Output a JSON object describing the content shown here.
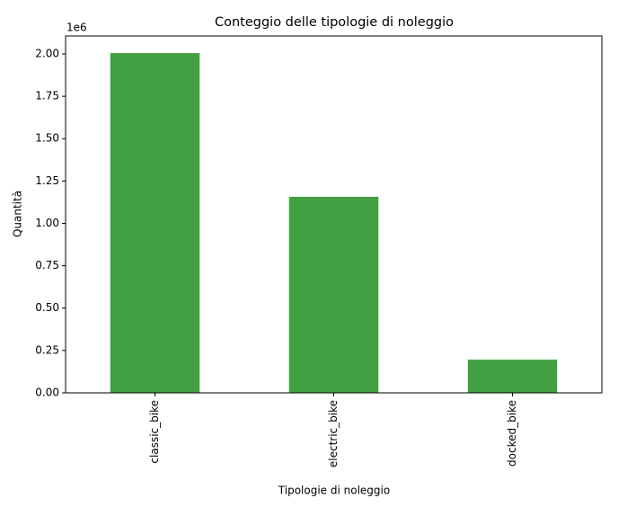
{
  "chart_data": {
    "type": "bar",
    "title": "Conteggio delle tipologie di noleggio",
    "x_label": "Tipologie di noleggio",
    "y_label": "Quantità",
    "y_offset_label": "1e6",
    "categories": [
      "classic_bike",
      "electric_bike",
      "docked_bike"
    ],
    "values": [
      2.005,
      1.157,
      0.196
    ],
    "color": "#43a043",
    "ylim": [
      0,
      2.106
    ],
    "yticks": [
      {
        "value": 0,
        "label": "0.00"
      },
      0.25,
      {
        "value": 0.5,
        "label": "0.50"
      },
      0.75,
      {
        "value": 1,
        "label": "1.00"
      },
      1.25,
      {
        "value": 1.5,
        "label": "1.50"
      },
      1.75,
      {
        "value": 2,
        "label": "2.00"
      }
    ],
    "grid": false
  }
}
